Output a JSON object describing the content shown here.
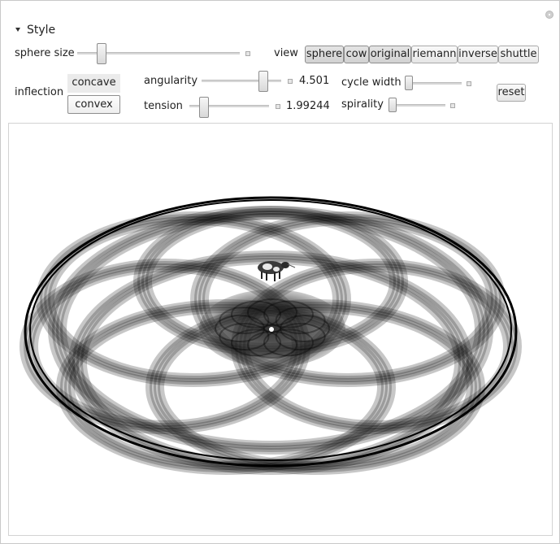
{
  "panel": {
    "section_title": "Style"
  },
  "controls": {
    "sphere_size": {
      "label": "sphere size",
      "value_fraction": 0.15
    },
    "view": {
      "label": "view",
      "options": [
        "sphere",
        "cow",
        "original",
        "riemann",
        "inverse",
        "shuttle"
      ],
      "selected": [
        "sphere",
        "cow",
        "original"
      ]
    },
    "inflection": {
      "label": "inflection",
      "options": [
        "concave",
        "convex"
      ],
      "selected": "convex"
    },
    "angularity": {
      "label": "angularity",
      "value": "4.501",
      "value_fraction": 0.73
    },
    "tension": {
      "label": "tension",
      "value": "1.99244",
      "value_fraction": 0.2
    },
    "cycle_width": {
      "label": "cycle width",
      "value_fraction": 0.02
    },
    "spirality": {
      "label": "spirality",
      "value_fraction": 0.02
    },
    "reset": {
      "label": "reset"
    }
  },
  "icons": {
    "close": "close-icon",
    "collapse": "triangle-down-icon",
    "increment": "plus-icon",
    "cow": "cow-icon"
  },
  "colors": {
    "curve": "#000000",
    "background": "#ffffff",
    "button_border": "#a9a9a9"
  }
}
